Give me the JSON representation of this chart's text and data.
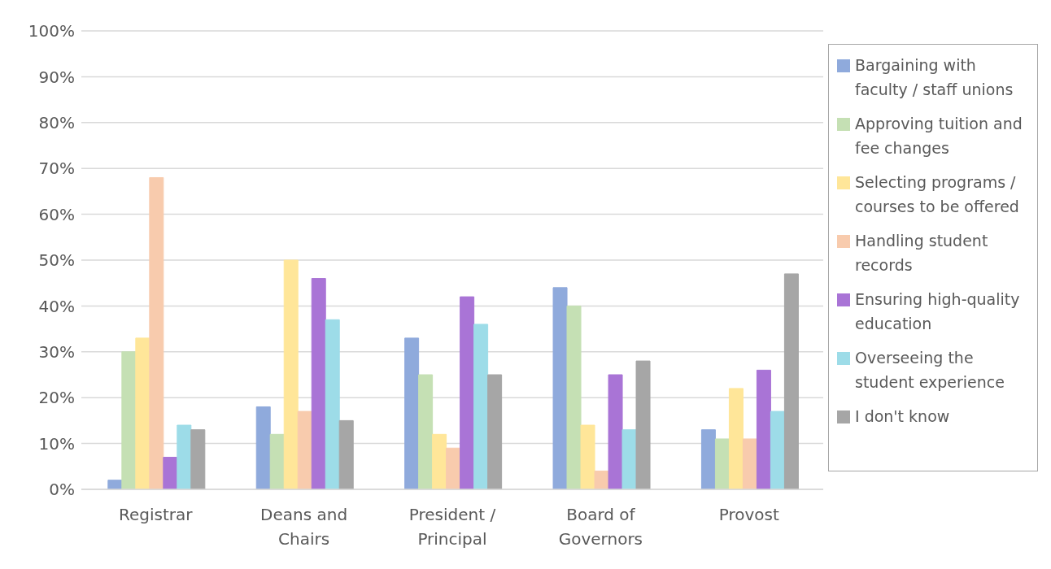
{
  "chart_data": {
    "type": "bar",
    "categories": [
      "Registrar",
      "Deans and Chairs",
      "President / Principal",
      "Board of Governors",
      "Provost"
    ],
    "series": [
      {
        "name": "Bargaining with faculty / staff unions",
        "color": "#8faadc",
        "values": [
          2,
          18,
          33,
          44,
          13
        ]
      },
      {
        "name": "Approving tuition and fee changes",
        "color": "#c5e0b4",
        "values": [
          30,
          12,
          25,
          40,
          11
        ]
      },
      {
        "name": "Selecting programs / courses to be offered",
        "color": "#ffe699",
        "values": [
          33,
          50,
          12,
          14,
          22
        ]
      },
      {
        "name": "Handling student records",
        "color": "#f8cbad",
        "values": [
          68,
          17,
          9,
          4,
          11
        ]
      },
      {
        "name": "Ensuring high-quality education",
        "color": "#a974d6",
        "values": [
          7,
          46,
          42,
          25,
          26
        ]
      },
      {
        "name": "Overseeing the student experience",
        "color": "#9ddce8",
        "values": [
          14,
          37,
          36,
          13,
          17
        ]
      },
      {
        "name": "I don't know",
        "color": "#a6a6a6",
        "values": [
          13,
          15,
          25,
          28,
          47
        ]
      }
    ],
    "ylim": [
      0,
      100
    ],
    "yticks": [
      {
        "value": 0,
        "label": "0%"
      },
      {
        "value": 10,
        "label": "10%"
      },
      {
        "value": 20,
        "label": "20%"
      },
      {
        "value": 30,
        "label": "30%"
      },
      {
        "value": 40,
        "label": "40%"
      },
      {
        "value": 50,
        "label": "50%"
      },
      {
        "value": 60,
        "label": "60%"
      },
      {
        "value": 70,
        "label": "70%"
      },
      {
        "value": 80,
        "label": "80%"
      },
      {
        "value": 90,
        "label": "90%"
      },
      {
        "value": 100,
        "label": "100%"
      }
    ],
    "grid": "y",
    "legend": "right"
  }
}
